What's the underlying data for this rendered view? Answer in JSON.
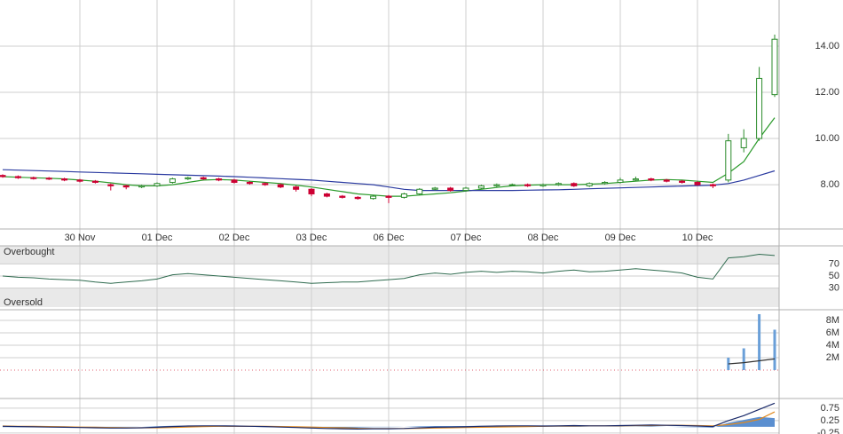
{
  "chart_data": [
    {
      "type": "candlestick",
      "categories": [
        null,
        null,
        null,
        null,
        null,
        "30 Nov",
        null,
        null,
        null,
        null,
        "01 Dec",
        null,
        null,
        null,
        null,
        "02 Dec",
        null,
        null,
        null,
        null,
        "03 Dec",
        null,
        null,
        null,
        null,
        "06 Dec",
        null,
        null,
        null,
        null,
        "07 Dec",
        null,
        null,
        null,
        null,
        "08 Dec",
        null,
        null,
        null,
        null,
        "09 Dec",
        null,
        null,
        null,
        null,
        "10 Dec",
        null,
        null,
        null,
        null,
        null
      ],
      "open": [
        8.4,
        8.35,
        8.3,
        8.28,
        8.25,
        8.2,
        8.15,
        8.0,
        7.95,
        7.9,
        7.95,
        8.1,
        8.25,
        8.3,
        8.25,
        8.2,
        8.1,
        8.05,
        8.0,
        7.9,
        7.8,
        7.6,
        7.5,
        7.45,
        7.4,
        7.5,
        7.45,
        7.6,
        7.8,
        7.85,
        7.75,
        7.85,
        7.95,
        8.0,
        8.0,
        7.95,
        8.0,
        8.05,
        7.95,
        8.05,
        8.1,
        8.2,
        8.25,
        8.2,
        8.15,
        8.1,
        8.0,
        8.2,
        9.6,
        10.0,
        11.9
      ],
      "high": [
        8.45,
        8.4,
        8.35,
        8.33,
        8.3,
        8.25,
        8.2,
        8.05,
        8.0,
        8.0,
        8.1,
        8.3,
        8.35,
        8.35,
        8.3,
        8.25,
        8.15,
        8.1,
        8.05,
        7.95,
        7.85,
        7.65,
        7.55,
        7.5,
        7.55,
        7.55,
        7.65,
        7.85,
        7.9,
        7.9,
        7.9,
        8.0,
        8.05,
        8.05,
        8.05,
        8.05,
        8.1,
        8.1,
        8.1,
        8.15,
        8.3,
        8.35,
        8.3,
        8.25,
        8.2,
        8.15,
        8.05,
        10.2,
        10.4,
        13.1,
        14.5
      ],
      "low": [
        8.3,
        8.25,
        8.22,
        8.2,
        8.15,
        8.1,
        8.05,
        7.75,
        7.8,
        7.85,
        7.9,
        8.05,
        8.2,
        8.2,
        8.15,
        8.05,
        8.0,
        7.95,
        7.85,
        7.7,
        7.5,
        7.45,
        7.4,
        7.35,
        7.35,
        7.2,
        7.4,
        7.55,
        7.75,
        7.7,
        7.7,
        7.8,
        7.9,
        7.95,
        7.9,
        7.9,
        7.95,
        7.9,
        7.9,
        8.0,
        8.05,
        8.15,
        8.15,
        8.1,
        8.05,
        7.95,
        7.85,
        8.1,
        9.4,
        9.9,
        11.8
      ],
      "close": [
        8.35,
        8.3,
        8.28,
        8.25,
        8.2,
        8.15,
        8.1,
        7.95,
        7.9,
        7.95,
        8.05,
        8.25,
        8.3,
        8.25,
        8.2,
        8.1,
        8.05,
        8.0,
        7.9,
        7.8,
        7.6,
        7.5,
        7.45,
        7.4,
        7.5,
        7.45,
        7.6,
        7.8,
        7.85,
        7.75,
        7.85,
        7.95,
        8.0,
        8.0,
        7.95,
        8.0,
        8.05,
        7.95,
        8.05,
        8.1,
        8.2,
        8.25,
        8.2,
        8.15,
        8.1,
        8.0,
        7.95,
        9.9,
        10.0,
        12.6,
        14.3
      ],
      "up_color": "#2a8a2a",
      "down_color": "#cc0033",
      "lines": [
        {
          "color": "#2a9a2a",
          "values": [
            8.35,
            8.32,
            8.3,
            8.28,
            8.25,
            8.2,
            8.15,
            8.08,
            8.0,
            7.95,
            7.95,
            8.0,
            8.1,
            8.2,
            8.22,
            8.2,
            8.15,
            8.1,
            8.05,
            7.98,
            7.9,
            7.8,
            7.7,
            7.6,
            7.55,
            7.5,
            7.5,
            7.55,
            7.6,
            7.65,
            7.72,
            7.8,
            7.88,
            7.95,
            7.98,
            8.0,
            8.0,
            8.0,
            8.02,
            8.05,
            8.1,
            8.15,
            8.2,
            8.22,
            8.2,
            8.15,
            8.1,
            8.5,
            9.0,
            10.0,
            10.9
          ]
        },
        {
          "color": "#2a3aa0",
          "values": [
            8.65,
            8.63,
            8.61,
            8.59,
            8.57,
            8.55,
            8.53,
            8.51,
            8.49,
            8.47,
            8.45,
            8.43,
            8.41,
            8.39,
            8.37,
            8.35,
            8.32,
            8.29,
            8.26,
            8.23,
            8.2,
            8.15,
            8.1,
            8.05,
            8.0,
            7.9,
            7.8,
            7.75,
            7.75,
            7.75,
            7.75,
            7.75,
            7.75,
            7.75,
            7.76,
            7.77,
            7.78,
            7.8,
            7.82,
            7.84,
            7.86,
            7.88,
            7.9,
            7.92,
            7.94,
            7.96,
            7.98,
            8.05,
            8.2,
            8.4,
            8.6
          ]
        }
      ],
      "ylim": [
        6.08,
        16
      ],
      "yticks": [
        {
          "value": 14,
          "label": "14.00"
        },
        {
          "value": 12,
          "label": "12.00"
        },
        {
          "value": 10,
          "label": "10.00"
        },
        {
          "value": 8,
          "label": "8.00"
        }
      ],
      "grid": true
    },
    {
      "type": "line",
      "annotations": [
        "Overbought",
        "Oversold"
      ],
      "color": "#2f6b4f",
      "values": [
        50,
        48,
        47,
        45,
        44,
        43,
        40,
        38,
        40,
        42,
        45,
        52,
        54,
        52,
        50,
        48,
        46,
        44,
        42,
        40,
        38,
        39,
        40,
        40,
        42,
        44,
        46,
        52,
        55,
        53,
        56,
        58,
        56,
        58,
        57,
        55,
        58,
        60,
        57,
        58,
        60,
        62,
        60,
        58,
        55,
        48,
        45,
        80,
        82,
        86,
        84
      ],
      "ylim": [
        0,
        100
      ],
      "yticks": [
        70,
        50,
        30
      ]
    },
    {
      "type": "bar",
      "up_color": "#6a9fd8",
      "down_color": "#e06070",
      "ma_color": "#333333",
      "values": [
        0,
        0,
        0,
        0,
        0,
        0,
        0,
        0,
        0,
        0,
        0,
        0,
        0,
        0,
        0,
        0,
        0,
        0,
        0,
        0,
        0,
        0,
        0,
        0,
        0,
        0,
        0,
        0,
        0,
        0,
        0,
        0,
        0,
        0,
        0,
        0,
        0,
        0,
        0,
        0,
        0,
        0,
        0,
        0,
        0,
        0,
        0,
        2000000,
        3500000,
        9000000,
        6500000
      ],
      "ma": [
        null,
        null,
        null,
        null,
        null,
        null,
        null,
        null,
        null,
        null,
        null,
        null,
        null,
        null,
        null,
        null,
        null,
        null,
        null,
        null,
        null,
        null,
        null,
        null,
        null,
        null,
        null,
        null,
        null,
        null,
        null,
        null,
        null,
        null,
        null,
        null,
        null,
        null,
        null,
        null,
        null,
        null,
        null,
        null,
        null,
        null,
        null,
        1000000,
        1200000,
        1500000,
        1800000
      ],
      "ylim": [
        -4570000,
        9710000
      ],
      "yticks": [
        {
          "value": 8000000,
          "label": "8M"
        },
        {
          "value": 6000000,
          "label": "6M"
        },
        {
          "value": 4000000,
          "label": "4M"
        },
        {
          "value": 2000000,
          "label": "2M"
        }
      ]
    },
    {
      "type": "macd",
      "macd_color": "#1a2a6a",
      "signal_color": "#e08a20",
      "histogram_color": "#5b8fd0",
      "macd": [
        0.02,
        0.01,
        0,
        -0.01,
        -0.02,
        -0.03,
        -0.04,
        -0.05,
        -0.05,
        -0.04,
        -0.02,
        0.01,
        0.03,
        0.04,
        0.04,
        0.03,
        0.02,
        0.01,
        -0.01,
        -0.03,
        -0.05,
        -0.07,
        -0.08,
        -0.09,
        -0.08,
        -0.08,
        -0.07,
        -0.04,
        -0.02,
        -0.01,
        0,
        0.02,
        0.03,
        0.04,
        0.04,
        0.03,
        0.04,
        0.05,
        0.04,
        0.04,
        0.05,
        0.06,
        0.07,
        0.06,
        0.05,
        0.03,
        0.01,
        0.25,
        0.45,
        0.7,
        0.95
      ],
      "signal": [
        0.03,
        0.02,
        0.02,
        0.01,
        0,
        -0.01,
        -0.02,
        -0.03,
        -0.04,
        -0.04,
        -0.04,
        -0.03,
        -0.01,
        0.01,
        0.02,
        0.02,
        0.02,
        0.02,
        0.01,
        0,
        -0.01,
        -0.03,
        -0.04,
        -0.06,
        -0.07,
        -0.07,
        -0.07,
        -0.06,
        -0.05,
        -0.04,
        -0.03,
        -0.02,
        -0.01,
        0,
        0.01,
        0.02,
        0.03,
        0.03,
        0.04,
        0.04,
        0.04,
        0.05,
        0.05,
        0.06,
        0.06,
        0.05,
        0.04,
        0.09,
        0.17,
        0.3,
        0.6
      ],
      "histogram": [
        -0.01,
        -0.01,
        -0.02,
        -0.02,
        -0.02,
        -0.02,
        -0.02,
        -0.02,
        -0.01,
        0,
        0.02,
        0.04,
        0.04,
        0.03,
        0.02,
        0.01,
        0,
        -0.01,
        -0.02,
        -0.03,
        -0.04,
        -0.04,
        -0.04,
        -0.03,
        -0.01,
        -0.01,
        0,
        0.02,
        0.03,
        0.03,
        0.03,
        0.04,
        0.04,
        0.04,
        0.03,
        0.01,
        0.01,
        0.02,
        0,
        0,
        0.01,
        0.01,
        0.02,
        0,
        -0.01,
        -0.02,
        -0.03,
        0.16,
        0.28,
        0.4,
        0.35
      ],
      "ylim": [
        -0.29,
        1.14
      ],
      "yticks": [
        0.75,
        0.25,
        -0.25
      ]
    }
  ]
}
